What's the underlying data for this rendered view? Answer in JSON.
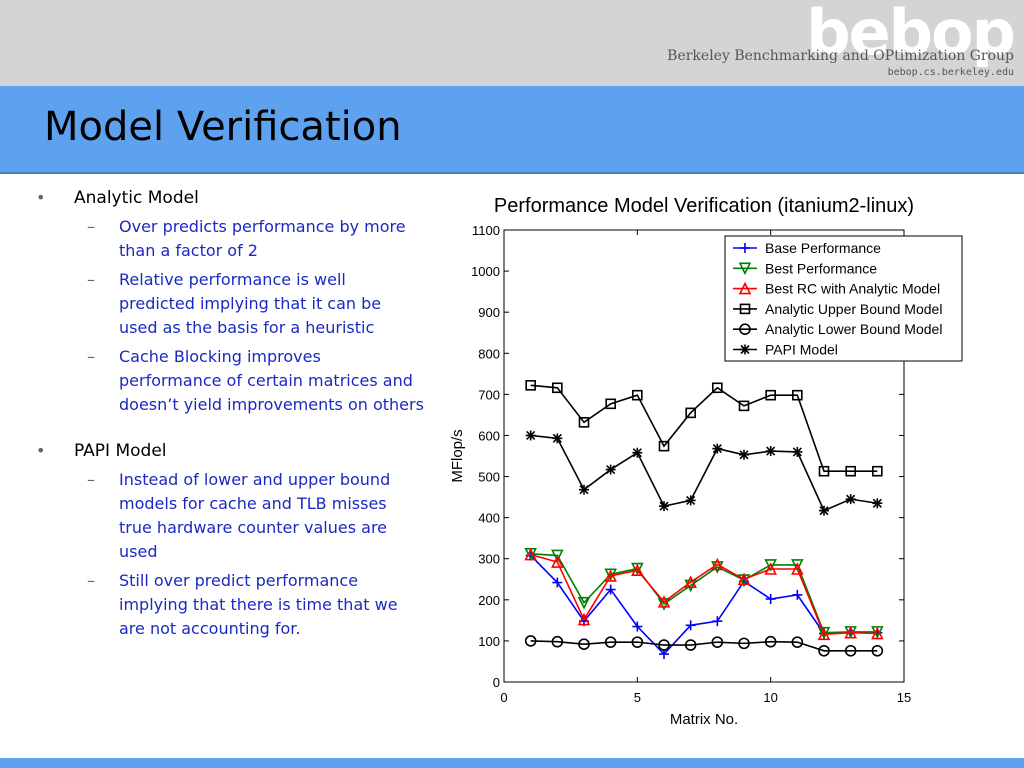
{
  "header": {
    "logo": "bebop",
    "group_name": "Berkeley Benchmarking and OPtimization Group",
    "group_url": "bebop.cs.berkeley.edu"
  },
  "slide": {
    "title": "Model Verification",
    "bullets": [
      {
        "text": "Analytic Model",
        "subitems": [
          "Over predicts performance by more than a factor of 2",
          "Relative performance is well predicted implying that it can be used as the basis for a heuristic",
          "Cache Blocking improves performance of certain matrices and doesn’t yield improvements on others"
        ]
      },
      {
        "text": "PAPI Model",
        "subitems": [
          "Instead of lower and upper bound models for cache and TLB misses true hardware counter values are used",
          "Still over predict performance implying that there is time that we are not accounting for."
        ]
      }
    ]
  },
  "colors": {
    "header_gray": "#d4d4d4",
    "title_band": "#5ea1ef",
    "subitem_text": "#1a29c2"
  },
  "chart_data": {
    "type": "line",
    "title": "Performance Model Verification (itanium2-linux)",
    "xlabel": "Matrix No.",
    "ylabel": "MFlop/s",
    "xlim": [
      0,
      15
    ],
    "ylim": [
      0,
      1100
    ],
    "xticks": [
      0,
      5,
      10,
      15
    ],
    "yticks": [
      0,
      100,
      200,
      300,
      400,
      500,
      600,
      700,
      800,
      900,
      1000,
      1100
    ],
    "grid": false,
    "legend_position": "top-right",
    "x": [
      1,
      2,
      3,
      4,
      5,
      6,
      7,
      8,
      9,
      10,
      11,
      12,
      13,
      14
    ],
    "series": [
      {
        "name": "Base Performance",
        "color": "#0000ff",
        "marker": "plus",
        "values": [
          308,
          242,
          148,
          225,
          135,
          68,
          138,
          148,
          245,
          202,
          212,
          118,
          120,
          120
        ]
      },
      {
        "name": "Best Performance",
        "color": "#008000",
        "marker": "triangle-down",
        "values": [
          312,
          308,
          193,
          262,
          276,
          190,
          235,
          280,
          248,
          285,
          285,
          120,
          122,
          122
        ]
      },
      {
        "name": "Best RC with Analytic Model",
        "color": "#ff0000",
        "marker": "triangle-up",
        "values": [
          310,
          292,
          152,
          258,
          272,
          195,
          243,
          286,
          250,
          275,
          275,
          116,
          120,
          118
        ]
      },
      {
        "name": "Analytic Upper Bound Model",
        "color": "#000000",
        "marker": "square",
        "values": [
          722,
          716,
          632,
          677,
          698,
          574,
          655,
          716,
          672,
          698,
          698,
          513,
          513,
          513
        ]
      },
      {
        "name": "Analytic Lower Bound Model",
        "color": "#000000",
        "marker": "circle",
        "values": [
          100,
          98,
          92,
          97,
          97,
          90,
          90,
          97,
          94,
          98,
          97,
          76,
          76,
          76
        ]
      },
      {
        "name": "PAPI Model",
        "color": "#000000",
        "marker": "asterisk",
        "values": [
          600,
          593,
          468,
          517,
          558,
          428,
          442,
          568,
          553,
          562,
          560,
          417,
          445,
          435
        ]
      }
    ]
  }
}
